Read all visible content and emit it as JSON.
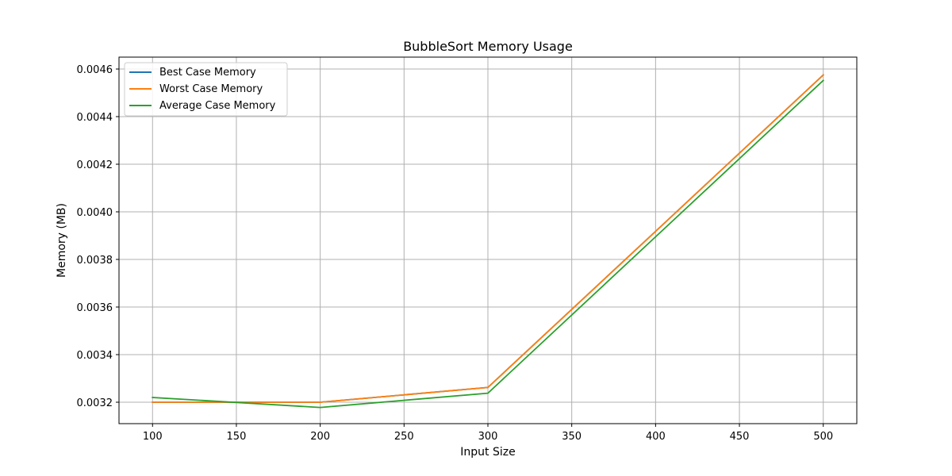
{
  "chart_data": {
    "type": "line",
    "title": "BubbleSort Memory Usage",
    "xlabel": "Input Size",
    "ylabel": "Memory (MB)",
    "x": [
      100,
      200,
      300,
      400,
      500
    ],
    "xlim": [
      80,
      520
    ],
    "ylim": [
      0.00311,
      0.00465
    ],
    "xticks": [
      100,
      150,
      200,
      250,
      300,
      350,
      400,
      450,
      500
    ],
    "yticks": [
      0.0032,
      0.0034,
      0.0036,
      0.0038,
      0.004,
      0.0042,
      0.0044,
      0.0046
    ],
    "ytick_labels": [
      "0.0032",
      "0.0034",
      "0.0036",
      "0.0038",
      "0.0040",
      "0.0042",
      "0.0044",
      "0.0046"
    ],
    "grid": true,
    "legend_position": "upper-left",
    "series": [
      {
        "name": "Best Case Memory",
        "color": "#1f77b4",
        "values": [
          0.0032,
          0.0032,
          0.003262,
          0.003918,
          0.004575
        ]
      },
      {
        "name": "Worst Case Memory",
        "color": "#ff7f0e",
        "values": [
          0.0032,
          0.0032,
          0.003262,
          0.003918,
          0.004575
        ]
      },
      {
        "name": "Average Case Memory",
        "color": "#2ca02c",
        "values": [
          0.00322,
          0.003178,
          0.003238,
          0.003895,
          0.004552
        ]
      }
    ]
  }
}
